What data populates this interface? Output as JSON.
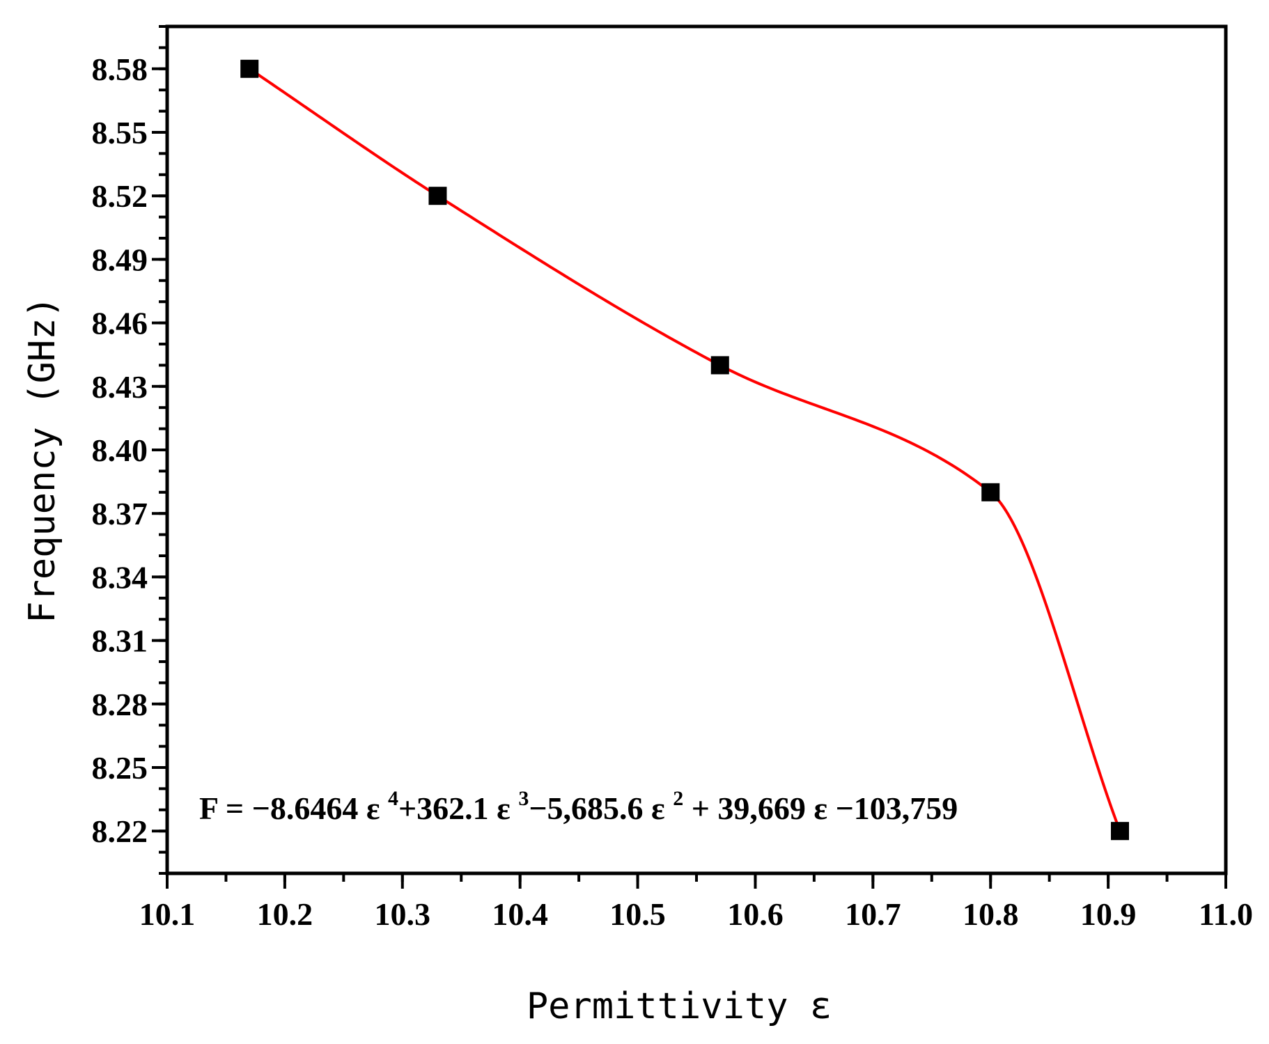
{
  "chart_data": {
    "type": "scatter",
    "xlabel": "Permittivity ε",
    "ylabel": "Frequency (GHz)",
    "xlim": [
      10.1,
      11.0
    ],
    "ylim": [
      8.2,
      8.6
    ],
    "x_ticks": [
      "10.1",
      "10.2",
      "10.3",
      "10.4",
      "10.5",
      "10.6",
      "10.7",
      "10.8",
      "10.9",
      "11.0"
    ],
    "x_tick_values": [
      10.1,
      10.2,
      10.3,
      10.4,
      10.5,
      10.6,
      10.7,
      10.8,
      10.9,
      11.0
    ],
    "y_ticks": [
      "8.22",
      "8.25",
      "8.28",
      "8.31",
      "8.34",
      "8.37",
      "8.40",
      "8.43",
      "8.46",
      "8.49",
      "8.52",
      "8.55",
      "8.58"
    ],
    "y_tick_values": [
      8.22,
      8.25,
      8.28,
      8.31,
      8.34,
      8.37,
      8.4,
      8.43,
      8.46,
      8.49,
      8.52,
      8.55,
      8.58
    ],
    "grid": false,
    "legend": "none",
    "series": [
      {
        "marker": "square",
        "color": "#000000",
        "x": [
          10.17,
          10.33,
          10.57,
          10.8,
          10.91
        ],
        "y": [
          8.58,
          8.52,
          8.44,
          8.38,
          8.22
        ]
      }
    ],
    "fit": {
      "type": "polynomial-degree-4",
      "color": "#ff0000",
      "equation": {
        "lead": "F = −8.6464 ε ",
        "p4": "4",
        "t3": "+362.1 ε ",
        "p3": "3",
        "t2": "−5,685.6 ε ",
        "p2": "2",
        "t1": " + 39,669 ε −103,759"
      }
    }
  }
}
